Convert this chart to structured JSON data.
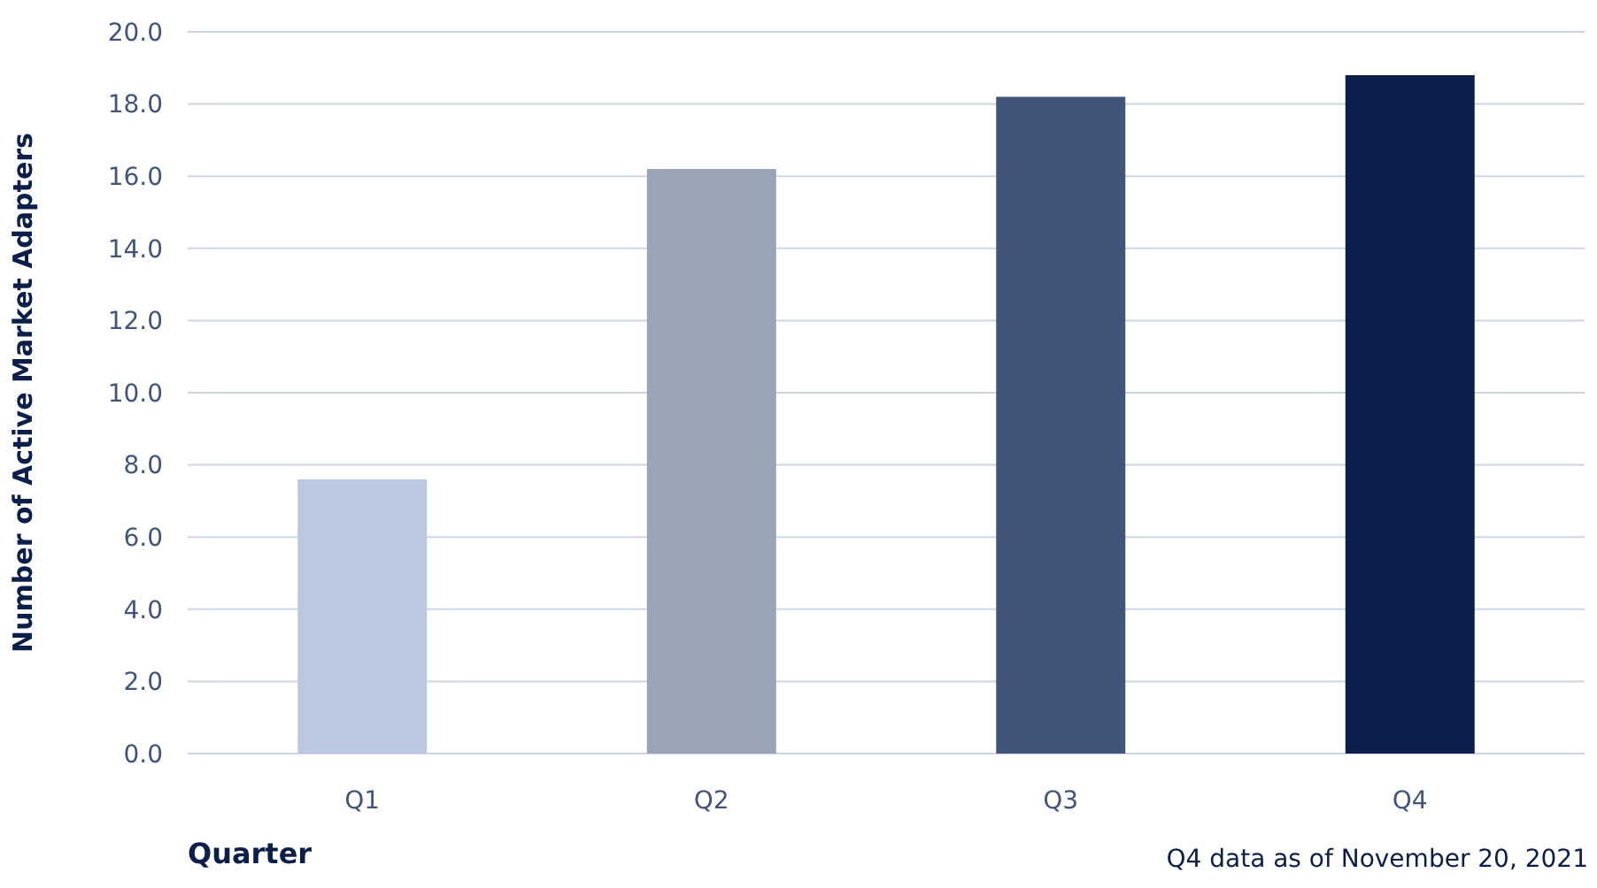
{
  "chart_data": {
    "type": "bar",
    "xlabel": "Quarter",
    "ylabel": "Number of Active Market Adapters",
    "categories": [
      "Q1",
      "Q2",
      "Q3",
      "Q4"
    ],
    "values": [
      7.6,
      16.2,
      18.2,
      18.8
    ],
    "colors": [
      "#bcc8e0",
      "#99a4b7",
      "#41557b",
      "#0c1e4a"
    ],
    "ylim": [
      0,
      20
    ],
    "yticks": [
      {
        "value": 0,
        "label": "0.0"
      },
      {
        "value": 2,
        "label": "2.0"
      },
      {
        "value": 4,
        "label": "4.0"
      },
      {
        "value": 6,
        "label": "6.0"
      },
      {
        "value": 8,
        "label": "8.0"
      },
      {
        "value": 10,
        "label": "10.0"
      },
      {
        "value": 12,
        "label": "12.0"
      },
      {
        "value": 14,
        "label": "14.0"
      },
      {
        "value": 16,
        "label": "16.0"
      },
      {
        "value": 18,
        "label": "18.0"
      },
      {
        "value": 20,
        "label": "20.0"
      }
    ],
    "grid": "y",
    "annotations": [
      "Q4 data as of November 20, 2021"
    ]
  }
}
